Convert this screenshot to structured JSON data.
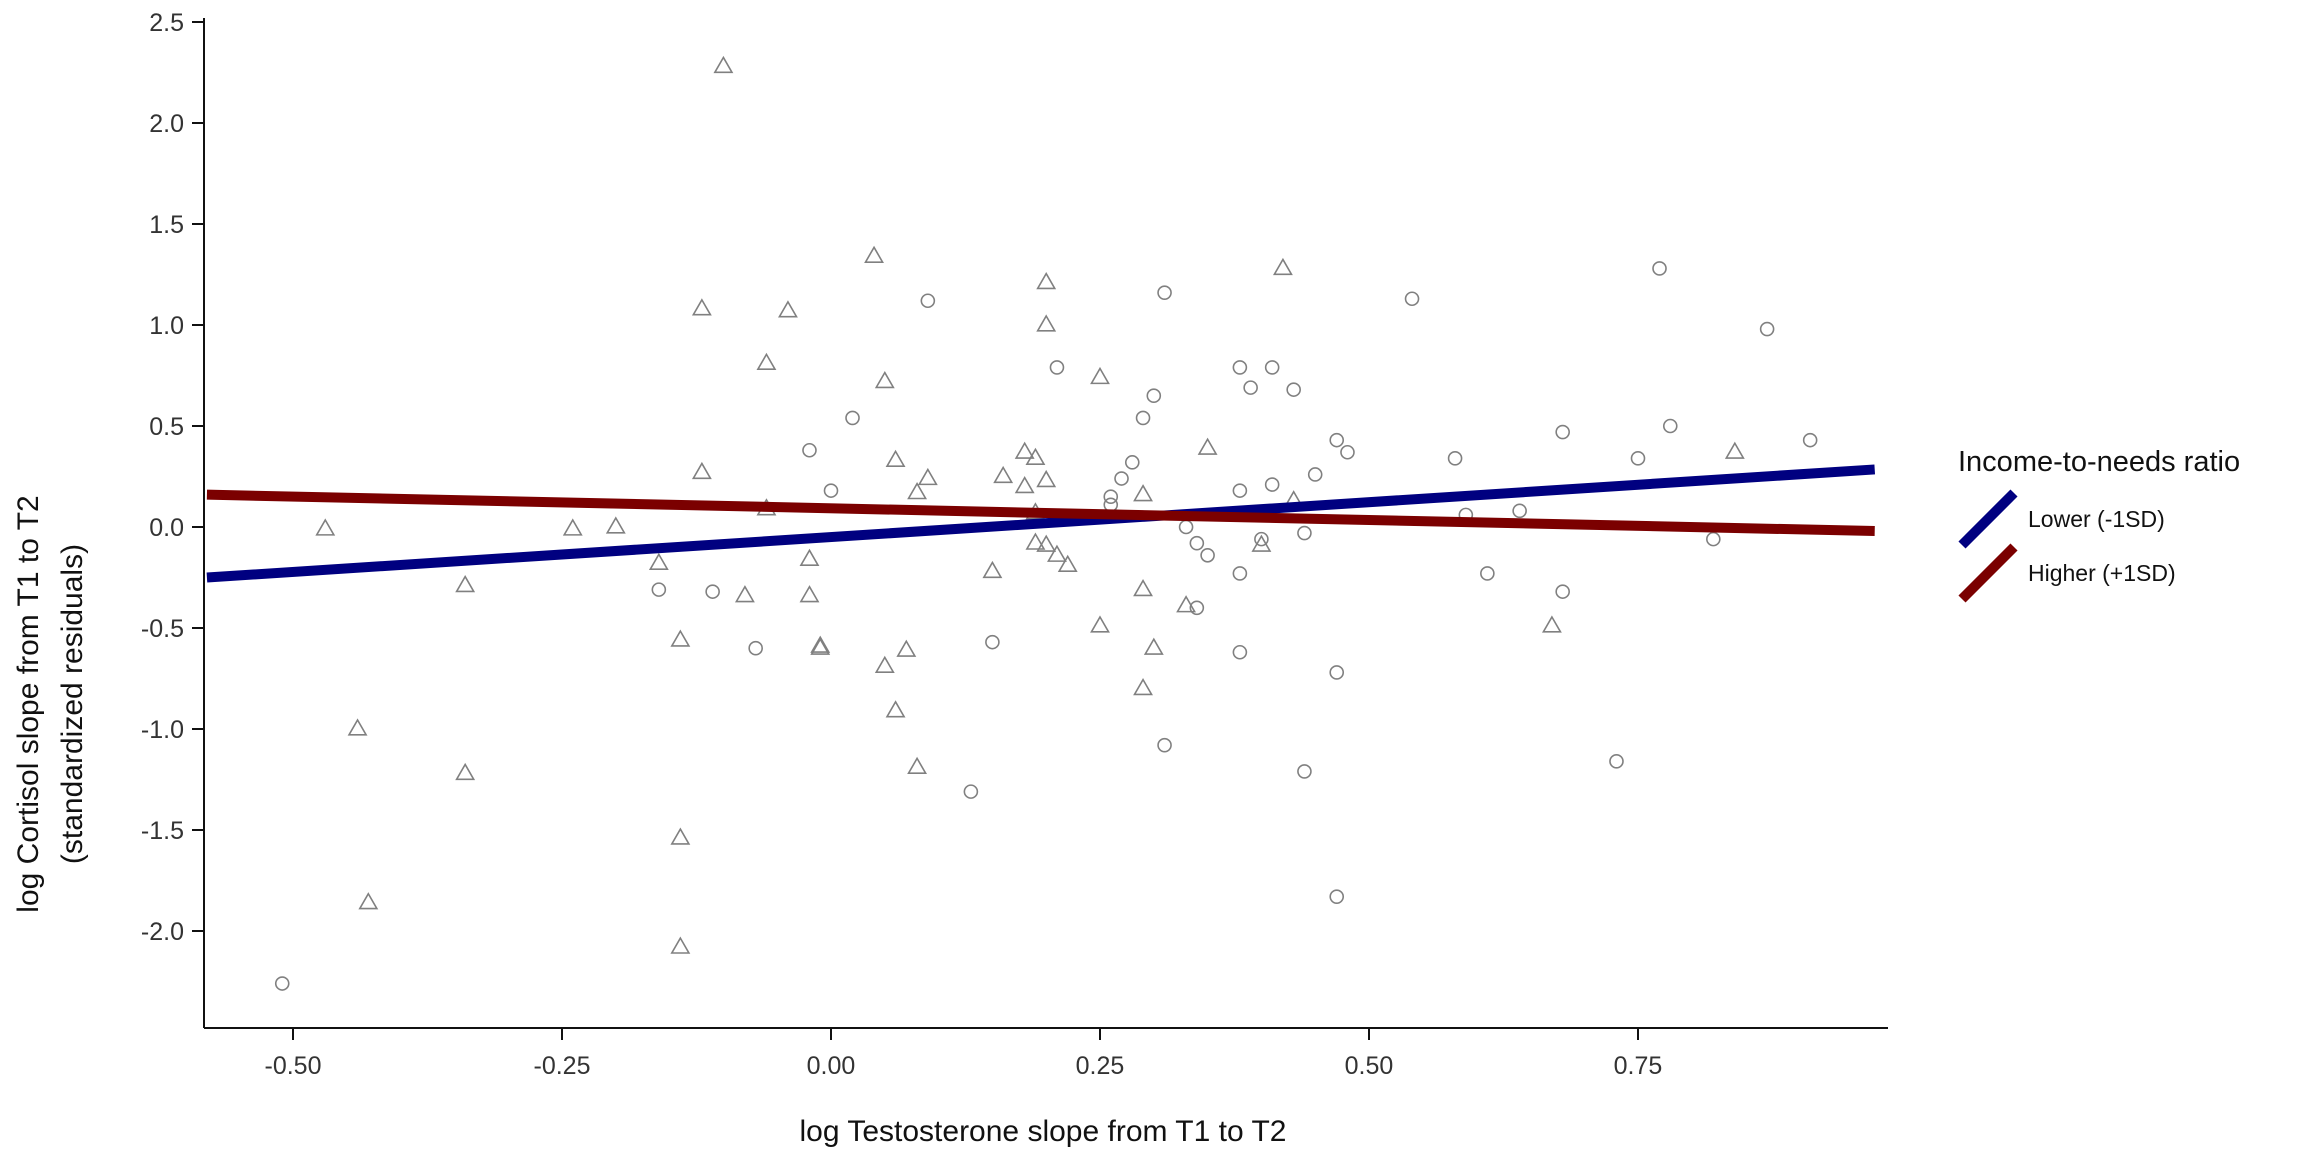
{
  "chart_data": {
    "type": "scatter",
    "title": "",
    "xlabel": "log Testosterone slope from T1 to T2",
    "ylabel": [
      "log Cortisol slope from T1 to T2",
      "(standardized residuals)"
    ],
    "xlim": [
      -0.58,
      0.97
    ],
    "ylim": [
      -2.5,
      2.5
    ],
    "x_ticks": [
      -0.5,
      -0.25,
      0.0,
      0.25,
      0.5,
      0.75
    ],
    "x_tick_labels": [
      "-0.50",
      "-0.25",
      "0.00",
      "0.25",
      "0.50",
      "0.75"
    ],
    "y_ticks": [
      -2.0,
      -1.5,
      -1.0,
      -0.5,
      0.0,
      0.5,
      1.0,
      1.5,
      2.0,
      2.5
    ],
    "y_tick_labels": [
      "-2.0",
      "-1.5",
      "-1.0",
      "-0.5",
      "0.0",
      "0.5",
      "1.0",
      "1.5",
      "2.0",
      "2.5"
    ],
    "grid": false,
    "legend": {
      "title": "Income-to-needs ratio",
      "placement": "right",
      "entries": [
        {
          "label": "Lower (-1SD)",
          "color": "#000080"
        },
        {
          "label": "Higher (+1SD)",
          "color": "#7b0000"
        }
      ]
    },
    "fit_lines": [
      {
        "series": "Lower (-1SD)",
        "color": "#000080",
        "x": [
          -0.58,
          0.97
        ],
        "y": [
          -0.25,
          0.285
        ]
      },
      {
        "series": "Higher (+1SD)",
        "color": "#7b0000",
        "x": [
          -0.58,
          0.97
        ],
        "y": [
          0.16,
          -0.02
        ]
      }
    ],
    "point_color": "#808080",
    "series": [
      {
        "marker": "triangle",
        "points": [
          [
            -0.1,
            2.28
          ],
          [
            0.04,
            1.34
          ],
          [
            0.2,
            1.21
          ],
          [
            0.42,
            1.28
          ],
          [
            -0.12,
            1.08
          ],
          [
            -0.04,
            1.07
          ],
          [
            0.2,
            1.0
          ],
          [
            -0.06,
            0.81
          ],
          [
            0.05,
            0.72
          ],
          [
            0.25,
            0.74
          ],
          [
            0.18,
            0.37
          ],
          [
            0.19,
            0.34
          ],
          [
            0.35,
            0.39
          ],
          [
            0.06,
            0.33
          ],
          [
            -0.12,
            0.27
          ],
          [
            0.09,
            0.24
          ],
          [
            0.16,
            0.25
          ],
          [
            0.2,
            0.23
          ],
          [
            0.18,
            0.2
          ],
          [
            0.08,
            0.17
          ],
          [
            0.29,
            0.16
          ],
          [
            0.43,
            0.13
          ],
          [
            0.84,
            0.37
          ],
          [
            -0.06,
            0.09
          ],
          [
            0.19,
            0.07
          ],
          [
            -0.47,
            -0.01
          ],
          [
            -0.24,
            -0.01
          ],
          [
            -0.2,
            0.0
          ],
          [
            0.19,
            -0.08
          ],
          [
            0.2,
            -0.09
          ],
          [
            0.21,
            -0.14
          ],
          [
            0.22,
            -0.19
          ],
          [
            0.4,
            -0.09
          ],
          [
            -0.16,
            -0.18
          ],
          [
            -0.02,
            -0.16
          ],
          [
            0.15,
            -0.22
          ],
          [
            -0.34,
            -0.29
          ],
          [
            -0.08,
            -0.34
          ],
          [
            -0.02,
            -0.34
          ],
          [
            0.29,
            -0.31
          ],
          [
            0.33,
            -0.39
          ],
          [
            0.25,
            -0.49
          ],
          [
            0.67,
            -0.49
          ],
          [
            -0.14,
            -0.56
          ],
          [
            -0.01,
            -0.59
          ],
          [
            -0.01,
            -0.6
          ],
          [
            0.07,
            -0.61
          ],
          [
            0.3,
            -0.6
          ],
          [
            0.05,
            -0.69
          ],
          [
            0.29,
            -0.8
          ],
          [
            0.06,
            -0.91
          ],
          [
            -0.44,
            -1.0
          ],
          [
            0.08,
            -1.19
          ],
          [
            -0.34,
            -1.22
          ],
          [
            -0.14,
            -1.54
          ],
          [
            -0.43,
            -1.86
          ],
          [
            -0.14,
            -2.08
          ]
        ]
      },
      {
        "marker": "circle",
        "points": [
          [
            0.31,
            1.16
          ],
          [
            0.54,
            1.13
          ],
          [
            0.09,
            1.12
          ],
          [
            0.77,
            1.28
          ],
          [
            0.87,
            0.98
          ],
          [
            0.21,
            0.79
          ],
          [
            0.38,
            0.79
          ],
          [
            0.41,
            0.79
          ],
          [
            0.39,
            0.69
          ],
          [
            0.43,
            0.68
          ],
          [
            0.3,
            0.65
          ],
          [
            0.02,
            0.54
          ],
          [
            0.29,
            0.54
          ],
          [
            0.78,
            0.5
          ],
          [
            0.68,
            0.47
          ],
          [
            0.47,
            0.43
          ],
          [
            0.91,
            0.43
          ],
          [
            -0.02,
            0.38
          ],
          [
            0.48,
            0.37
          ],
          [
            0.58,
            0.34
          ],
          [
            0.75,
            0.34
          ],
          [
            0.28,
            0.32
          ],
          [
            0.45,
            0.26
          ],
          [
            0.27,
            0.24
          ],
          [
            0.41,
            0.21
          ],
          [
            0.0,
            0.18
          ],
          [
            0.38,
            0.18
          ],
          [
            0.26,
            0.15
          ],
          [
            0.26,
            0.11
          ],
          [
            0.59,
            0.06
          ],
          [
            0.64,
            0.08
          ],
          [
            0.33,
            0.0
          ],
          [
            0.44,
            -0.03
          ],
          [
            0.4,
            -0.06
          ],
          [
            0.82,
            -0.06
          ],
          [
            0.34,
            -0.08
          ],
          [
            0.35,
            -0.14
          ],
          [
            0.38,
            -0.23
          ],
          [
            0.61,
            -0.23
          ],
          [
            -0.16,
            -0.31
          ],
          [
            -0.11,
            -0.32
          ],
          [
            0.68,
            -0.32
          ],
          [
            0.34,
            -0.4
          ],
          [
            0.15,
            -0.57
          ],
          [
            -0.07,
            -0.6
          ],
          [
            0.38,
            -0.62
          ],
          [
            0.47,
            -0.72
          ],
          [
            0.31,
            -1.08
          ],
          [
            0.73,
            -1.16
          ],
          [
            0.44,
            -1.21
          ],
          [
            0.13,
            -1.31
          ],
          [
            0.47,
            -1.83
          ],
          [
            -0.51,
            -2.26
          ]
        ]
      }
    ]
  }
}
